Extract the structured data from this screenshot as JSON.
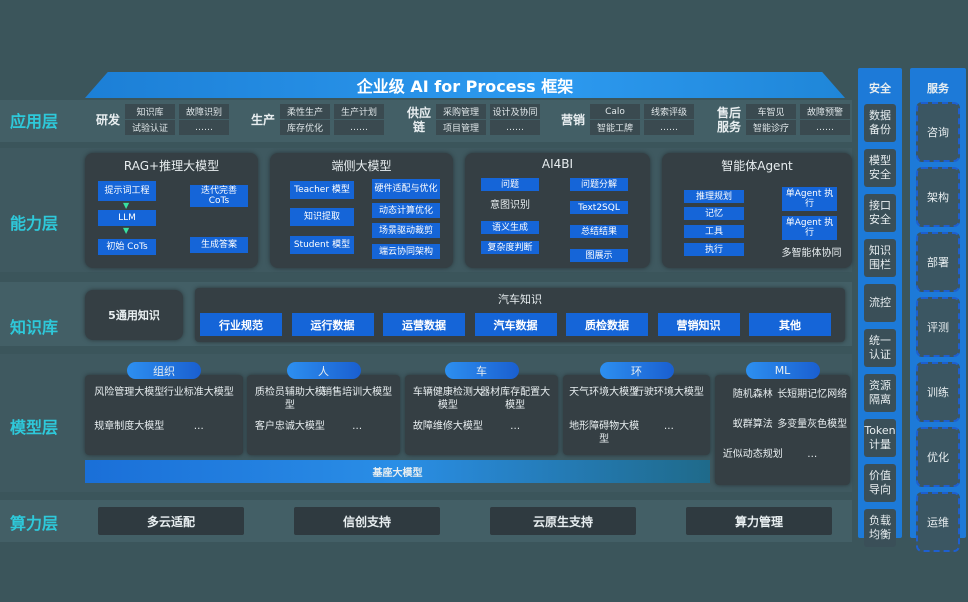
{
  "title": "企业级 AI for Process 框架",
  "layers": {
    "app": "应用层",
    "capability": "能力层",
    "knowledge": "知识库",
    "model": "模型层",
    "compute": "算力层"
  },
  "app_groups": [
    {
      "name": "研发",
      "col1": [
        "知识库",
        "试验认证"
      ],
      "col2": [
        "故障识别",
        "……"
      ]
    },
    {
      "name": "生产",
      "col1": [
        "柔性生产",
        "库存优化"
      ],
      "col2": [
        "生产计划",
        "……"
      ]
    },
    {
      "name": "供应链",
      "col1": [
        "采购管理",
        "项目管理"
      ],
      "col2": [
        "设计及协同",
        "……"
      ]
    },
    {
      "name": "营销",
      "col1": [
        "Calo",
        "智能工牌"
      ],
      "col2": [
        "线索评级",
        "……"
      ]
    },
    {
      "name": "售后服务",
      "col1": [
        "车智见",
        "智能诊疗"
      ],
      "col2": [
        "故障预警",
        "……"
      ]
    }
  ],
  "capability": {
    "rag": {
      "title": "RAG+推理大模型",
      "items": [
        "提示词工程",
        "LLM",
        "初始 CoTs",
        "迭代完善 CoTs",
        "生成答案"
      ]
    },
    "edge": {
      "title": "端侧大模型",
      "items": [
        "Teacher 模型",
        "知识提取",
        "Student 模型",
        "硬件适配与优化",
        "动态计算优化",
        "场景驱动裁剪",
        "端云协同架构"
      ]
    },
    "ai4bi": {
      "title": "AI4BI",
      "items": [
        "问题",
        "意图识别",
        "语义生成",
        "复杂度判断",
        "问题分解",
        "Text2SQL",
        "总结结果",
        "图展示"
      ]
    },
    "agent": {
      "title": "智能体Agent",
      "items": [
        "推理规划",
        "记忆",
        "工具",
        "执行",
        "单Agent 执行",
        "单Agent 执行"
      ],
      "footer": "多智能体协同"
    }
  },
  "knowledge": {
    "general": "5通用知识",
    "auto_title": "汽车知识",
    "items": [
      "行业规范",
      "运行数据",
      "运营数据",
      "汽车数据",
      "质检数据",
      "营销知识",
      "其他"
    ]
  },
  "model": {
    "groups": [
      {
        "name": "组织",
        "items": [
          "风险管理大模型",
          "行业标准大模型",
          "规章制度大模型",
          "…"
        ]
      },
      {
        "name": "人",
        "items": [
          "质检员辅助大模型",
          "销售培训大模型",
          "客户忠诚大模型",
          "…"
        ]
      },
      {
        "name": "车",
        "items": [
          "车辆健康检测大模型",
          "器材库存配置大模型",
          "故障维修大模型",
          "…"
        ]
      },
      {
        "name": "环",
        "items": [
          "天气环境大模型",
          "行驶环境大模型",
          "地形障碍物大模型",
          "…"
        ]
      },
      {
        "name": "ML",
        "items": [
          "随机森林",
          "长短期记忆网络",
          "蚁群算法",
          "多变量灰色模型",
          "近似动态规划",
          "…"
        ]
      }
    ],
    "base": "基座大模型"
  },
  "compute": [
    "多云适配",
    "信创支持",
    "云原生支持",
    "算力管理"
  ],
  "security": {
    "title": "安全",
    "items": [
      "数据备份",
      "模型安全",
      "接口安全",
      "知识围栏",
      "流控",
      "统一认证",
      "资源隔离",
      "Token计量",
      "价值导向",
      "负载均衡"
    ]
  },
  "services": {
    "title": "服务",
    "items": [
      "咨询",
      "架构",
      "部署",
      "评测",
      "训练",
      "优化",
      "运维"
    ]
  }
}
